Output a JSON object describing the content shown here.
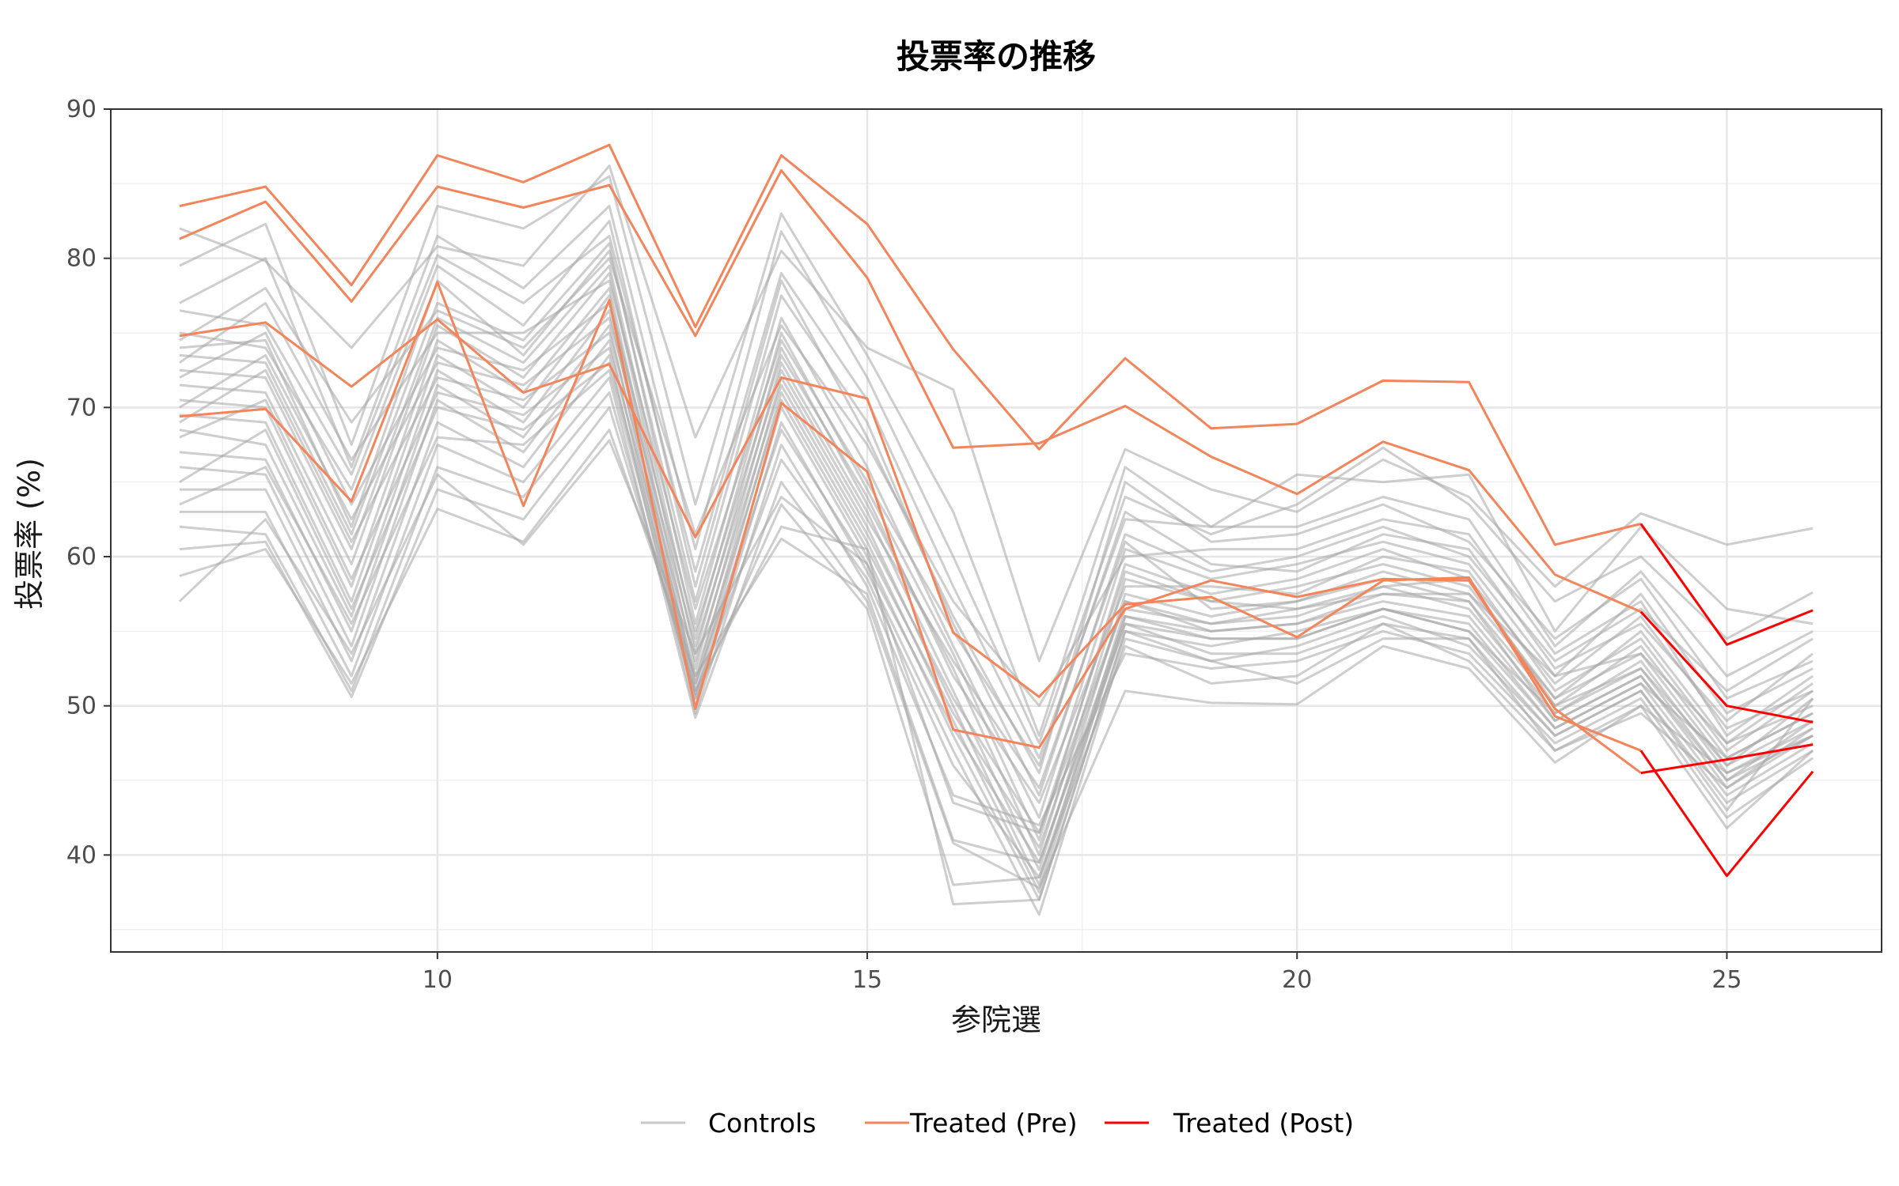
{
  "chart_data": {
    "type": "line",
    "title": "投票率の推移",
    "xlabel": "参院選",
    "ylabel": "投票率 (%)",
    "xlim": [
      6.2,
      26.8
    ],
    "ylim": [
      33.5,
      90.0
    ],
    "x_ticks": [
      10,
      15,
      20,
      25
    ],
    "y_ticks": [
      40,
      50,
      60,
      70,
      80,
      90
    ],
    "grid": true,
    "legend_position": "bottom",
    "legend": [
      "Controls",
      "Treated (Pre)",
      "Treated (Post)"
    ],
    "colors": {
      "Controls": "#a6a6a6",
      "Treated (Pre)": "#f4845a",
      "Treated (Post)": "#ff0000"
    },
    "x": [
      7,
      8,
      9,
      10,
      11,
      12,
      13,
      14,
      15,
      16,
      17,
      18,
      19,
      20,
      21,
      22,
      23,
      24,
      25,
      26
    ],
    "controls": [
      [
        82.0,
        79.8,
        74.0,
        80.8,
        79.5,
        86.2,
        68.0,
        80.5,
        74.0,
        71.2,
        53.0,
        67.2,
        64.5,
        63.0,
        66.5,
        64.0,
        58.0,
        62.9,
        60.8,
        61.9
      ],
      [
        79.5,
        82.3,
        67.5,
        83.5,
        82.0,
        85.5,
        63.5,
        83.0,
        73.5,
        63.0,
        48.0,
        66.0,
        62.0,
        65.5,
        65.0,
        65.5,
        55.0,
        62.0,
        56.5,
        55.5
      ],
      [
        77.0,
        80.0,
        66.0,
        81.5,
        78.0,
        83.5,
        60.5,
        81.8,
        72.0,
        60.0,
        47.5,
        64.0,
        61.5,
        63.5,
        67.3,
        63.5,
        57.0,
        60.0,
        54.5,
        57.6
      ],
      [
        76.5,
        75.5,
        65.5,
        80.2,
        77.0,
        81.5,
        59.0,
        79.0,
        70.5,
        58.0,
        46.5,
        62.5,
        62.0,
        62.0,
        64.0,
        62.5,
        54.0,
        59.0,
        52.0,
        55.0
      ],
      [
        75.0,
        74.0,
        64.5,
        79.5,
        75.5,
        82.5,
        58.0,
        78.5,
        68.0,
        56.0,
        45.5,
        65.0,
        61.0,
        61.5,
        63.5,
        61.0,
        54.5,
        58.5,
        50.5,
        53.0
      ],
      [
        74.0,
        74.5,
        62.0,
        78.5,
        73.5,
        80.5,
        57.0,
        77.5,
        69.0,
        55.5,
        44.0,
        61.5,
        59.0,
        60.0,
        62.0,
        60.0,
        53.0,
        56.5,
        51.0,
        54.5
      ],
      [
        73.5,
        73.0,
        61.5,
        77.0,
        74.5,
        81.0,
        55.5,
        76.0,
        66.0,
        54.0,
        42.5,
        60.5,
        58.5,
        59.5,
        61.0,
        59.5,
        52.0,
        57.5,
        49.5,
        52.5
      ],
      [
        72.5,
        72.0,
        60.5,
        76.0,
        73.0,
        79.5,
        54.5,
        75.0,
        64.5,
        53.5,
        41.0,
        59.5,
        57.5,
        58.5,
        60.5,
        58.5,
        51.5,
        56.0,
        48.5,
        51.0
      ],
      [
        71.5,
        71.0,
        59.5,
        75.5,
        72.0,
        79.0,
        53.5,
        74.0,
        63.5,
        52.5,
        40.0,
        58.5,
        57.0,
        58.0,
        59.5,
        58.0,
        50.5,
        55.0,
        47.5,
        50.0
      ],
      [
        70.5,
        70.0,
        58.0,
        74.5,
        71.0,
        78.0,
        52.5,
        73.0,
        63.0,
        51.0,
        39.0,
        57.5,
        56.0,
        57.0,
        58.5,
        57.0,
        50.0,
        54.0,
        46.5,
        49.5
      ],
      [
        69.5,
        69.0,
        57.0,
        73.5,
        70.0,
        77.5,
        51.5,
        72.0,
        62.0,
        50.0,
        38.0,
        56.5,
        55.5,
        56.0,
        58.0,
        56.5,
        49.5,
        53.0,
        45.5,
        48.5
      ],
      [
        68.5,
        67.5,
        56.0,
        72.5,
        69.0,
        76.5,
        51.0,
        71.0,
        61.0,
        49.0,
        37.5,
        56.0,
        55.0,
        55.5,
        57.0,
        56.0,
        49.0,
        52.0,
        45.0,
        48.0
      ],
      [
        67.0,
        66.5,
        55.0,
        71.5,
        68.0,
        75.5,
        50.5,
        70.0,
        60.0,
        48.0,
        37.0,
        55.0,
        54.0,
        55.0,
        56.5,
        55.0,
        48.5,
        51.5,
        44.0,
        47.5
      ],
      [
        66.0,
        65.5,
        54.0,
        70.5,
        67.0,
        74.5,
        50.0,
        69.0,
        59.0,
        47.0,
        36.0,
        54.5,
        53.0,
        54.0,
        56.0,
        54.0,
        48.0,
        51.0,
        43.5,
        47.0
      ],
      [
        64.5,
        64.5,
        53.0,
        69.0,
        66.0,
        73.5,
        49.5,
        67.5,
        58.0,
        44.0,
        42.0,
        53.5,
        52.5,
        53.0,
        55.0,
        53.5,
        47.5,
        50.5,
        42.5,
        46.5
      ],
      [
        63.0,
        63.0,
        52.0,
        67.5,
        65.0,
        72.0,
        49.2,
        65.0,
        57.0,
        40.8,
        37.8,
        51.0,
        50.2,
        50.1,
        54.0,
        52.5,
        46.2,
        50.0,
        41.8,
        47.0
      ],
      [
        62.0,
        61.5,
        51.0,
        66.0,
        64.0,
        71.0,
        50.5,
        63.5,
        56.5,
        38.0,
        38.5,
        54.0,
        51.5,
        52.0,
        55.5,
        53.0,
        47.0,
        49.5,
        44.5,
        48.0
      ],
      [
        60.5,
        61.0,
        50.6,
        64.5,
        62.5,
        70.0,
        51.0,
        62.0,
        60.5,
        36.7,
        37.0,
        55.0,
        53.0,
        51.5,
        54.5,
        54.5,
        48.0,
        51.0,
        43.0,
        50.5
      ],
      [
        58.7,
        60.5,
        51.5,
        63.2,
        61.0,
        68.5,
        52.0,
        61.2,
        57.5,
        41.0,
        39.5,
        55.5,
        54.5,
        54.5,
        56.5,
        55.0,
        49.5,
        52.5,
        46.0,
        49.0
      ],
      [
        57.0,
        62.5,
        53.5,
        65.5,
        60.8,
        67.8,
        53.5,
        64.0,
        59.5,
        43.5,
        41.5,
        57.0,
        55.5,
        56.5,
        57.5,
        57.5,
        50.5,
        53.5,
        47.5,
        51.5
      ],
      [
        74.5,
        78.0,
        69.0,
        76.5,
        74.0,
        80.0,
        61.5,
        75.5,
        67.5,
        57.0,
        50.0,
        60.0,
        60.5,
        60.5,
        62.5,
        61.5,
        53.5,
        57.0,
        48.0,
        52.0
      ],
      [
        73.0,
        77.0,
        66.5,
        75.0,
        75.0,
        78.5,
        56.5,
        74.5,
        65.0,
        55.0,
        46.0,
        63.0,
        59.5,
        59.0,
        61.5,
        60.5,
        52.5,
        55.5,
        49.0,
        53.5
      ],
      [
        72.0,
        75.0,
        63.5,
        74.0,
        72.5,
        77.0,
        55.0,
        73.5,
        64.0,
        52.0,
        43.5,
        58.0,
        58.0,
        57.5,
        60.0,
        59.0,
        51.0,
        54.5,
        47.0,
        51.0
      ],
      [
        70.0,
        73.5,
        62.5,
        73.0,
        71.5,
        76.0,
        54.0,
        72.5,
        62.5,
        53.0,
        44.5,
        61.0,
        56.5,
        57.0,
        59.0,
        57.5,
        52.0,
        53.5,
        46.0,
        50.5
      ],
      [
        69.0,
        72.5,
        61.0,
        72.0,
        70.5,
        75.0,
        53.0,
        71.5,
        61.5,
        50.5,
        41.5,
        59.0,
        57.0,
        56.5,
        58.0,
        58.5,
        50.0,
        52.5,
        45.0,
        49.0
      ],
      [
        68.0,
        70.5,
        58.5,
        71.0,
        69.5,
        74.0,
        52.0,
        70.5,
        60.5,
        49.5,
        40.5,
        57.0,
        55.0,
        55.5,
        57.5,
        57.0,
        49.0,
        52.0,
        44.5,
        48.5
      ],
      [
        65.0,
        68.5,
        56.5,
        70.0,
        68.5,
        73.0,
        51.5,
        68.5,
        59.5,
        48.5,
        39.5,
        56.0,
        54.5,
        54.5,
        56.5,
        55.5,
        48.5,
        51.5,
        46.5,
        49.5
      ],
      [
        63.5,
        66.0,
        55.5,
        68.0,
        67.5,
        72.5,
        50.8,
        66.5,
        58.5,
        46.0,
        38.5,
        55.5,
        53.5,
        53.5,
        55.5,
        54.5,
        47.0,
        50.0,
        45.5,
        48.0
      ]
    ],
    "treated_pre": [
      {
        "x": [
          7,
          8,
          9,
          10,
          11,
          12,
          13,
          14,
          15,
          16,
          17,
          18,
          19,
          20,
          21,
          22,
          23,
          24
        ],
        "y": [
          83.5,
          84.8,
          78.2,
          86.9,
          85.1,
          87.6,
          75.4,
          86.9,
          82.3,
          73.9,
          67.2,
          73.3,
          68.6,
          68.9,
          71.8,
          71.7,
          60.8,
          62.2
        ]
      },
      {
        "x": [
          7,
          8,
          9,
          10,
          11,
          12,
          13,
          14,
          15,
          16,
          17,
          18,
          19,
          20,
          21,
          22,
          23,
          24
        ],
        "y": [
          81.3,
          83.8,
          77.1,
          84.8,
          83.4,
          84.9,
          74.8,
          85.9,
          78.7,
          67.3,
          67.6,
          70.1,
          66.7,
          64.2,
          67.7,
          65.8,
          58.8,
          56.3
        ]
      },
      {
        "x": [
          7,
          8,
          9,
          10,
          11,
          12,
          13,
          14,
          15,
          16,
          17,
          18,
          19,
          20,
          21,
          22,
          23,
          24
        ],
        "y": [
          74.8,
          75.7,
          71.4,
          75.9,
          71.0,
          72.9,
          61.3,
          72.0,
          70.6,
          54.9,
          50.6,
          56.8,
          57.3,
          54.6,
          58.4,
          58.6,
          49.3,
          47.0
        ]
      },
      {
        "x": [
          7,
          8,
          9,
          10,
          11,
          12,
          13,
          14,
          15,
          16,
          17,
          18,
          19,
          20,
          21,
          22,
          23,
          24
        ],
        "y": [
          69.4,
          69.9,
          63.7,
          78.4,
          63.4,
          77.2,
          49.8,
          70.3,
          65.7,
          48.4,
          47.2,
          56.5,
          58.4,
          57.3,
          58.5,
          58.4,
          49.8,
          45.5
        ]
      }
    ],
    "treated_post": [
      {
        "x": [
          24,
          25,
          26
        ],
        "y": [
          62.2,
          54.1,
          56.4
        ]
      },
      {
        "x": [
          24,
          25,
          26
        ],
        "y": [
          56.3,
          50.0,
          48.9
        ]
      },
      {
        "x": [
          24,
          25,
          26
        ],
        "y": [
          47.0,
          38.6,
          45.6
        ]
      },
      {
        "x": [
          24,
          25,
          26
        ],
        "y": [
          45.5,
          46.4,
          47.4
        ]
      }
    ]
  }
}
